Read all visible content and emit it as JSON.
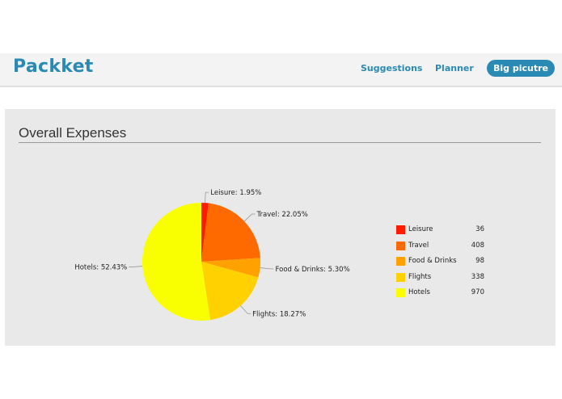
{
  "navbar": {
    "brand": "Packket",
    "links": [
      "Suggestions",
      "Planner",
      "Big picutre"
    ]
  },
  "panel": {
    "title": "Overall Expenses"
  },
  "chart_data": {
    "type": "pie",
    "title": "Overall Expenses",
    "categories": [
      "Leisure",
      "Travel",
      "Food & Drinks",
      "Flights",
      "Hotels"
    ],
    "values": [
      36,
      408,
      98,
      338,
      970
    ],
    "slice_labels": [
      "Leisure: 1.95%",
      "Travel: 22.05%",
      "Food & Drinks: 5.30%",
      "Flights: 18.27%",
      "Hotels: 52.43%"
    ],
    "colors": [
      "#ff1a00",
      "#ff6a00",
      "#ffa100",
      "#ffd100",
      "#f9ff00"
    ],
    "legend_placement": "right"
  },
  "colors": {
    "brand": "#2a8ab3",
    "panel_bg": "#e9e9e9"
  }
}
